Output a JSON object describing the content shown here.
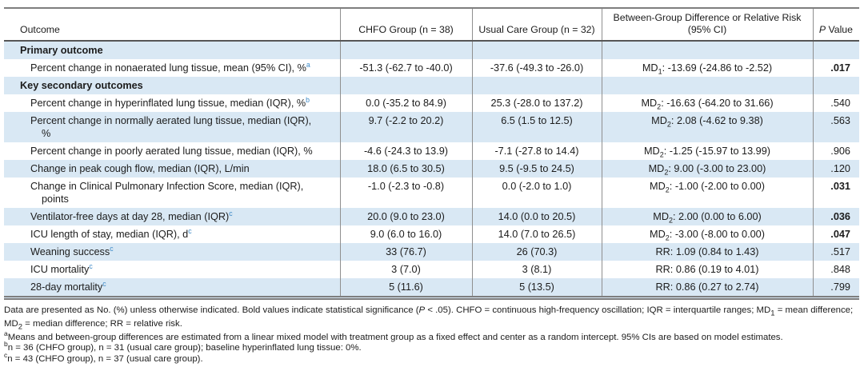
{
  "table": {
    "headers": {
      "outcome": "Outcome",
      "chfo": "CHFO Group (n = 38)",
      "usual": "Usual Care Group (n = 32)",
      "diff_line1": "Between-Group Difference or Relative Risk",
      "diff_line2": "(95% CI)",
      "p_italic": "P",
      "p_rest": " Value"
    },
    "rows": [
      {
        "type": "category",
        "shaded": true,
        "label": "Primary outcome"
      },
      {
        "type": "item",
        "shaded": false,
        "label": "Percent change in nonaerated lung tissue, mean (95% CI), %",
        "sup": "a",
        "chfo": "-51.3 (-62.7 to -40.0)",
        "usual": "-37.6 (-49.3 to -26.0)",
        "diff_pre": "MD",
        "diff_sub": "1",
        "diff_post": ": -13.69 (-24.86 to -2.52)",
        "p": ".017",
        "p_bold": true
      },
      {
        "type": "category",
        "shaded": true,
        "label": "Key secondary outcomes"
      },
      {
        "type": "item",
        "shaded": false,
        "label": "Percent change in hyperinflated lung tissue, median (IQR), %",
        "sup": "b",
        "chfo": "0.0 (-35.2 to 84.9)",
        "usual": "25.3 (-28.0 to 137.2)",
        "diff_pre": "MD",
        "diff_sub": "2",
        "diff_post": ": -16.63 (-64.20 to 31.66)",
        "p": ".540",
        "p_bold": false
      },
      {
        "type": "item",
        "shaded": true,
        "label": "Percent change in normally aerated lung tissue, median (IQR),",
        "label2": "%",
        "chfo": "9.7 (-2.2 to 20.2)",
        "usual": "6.5 (1.5 to 12.5)",
        "diff_pre": "MD",
        "diff_sub": "2",
        "diff_post": ": 2.08 (-4.62 to 9.38)",
        "p": ".563",
        "p_bold": false
      },
      {
        "type": "item",
        "shaded": false,
        "label": "Percent change in poorly aerated lung tissue, median (IQR), %",
        "chfo": "-4.6 (-24.3 to 13.9)",
        "usual": "-7.1 (-27.8 to 14.4)",
        "diff_pre": "MD",
        "diff_sub": "2",
        "diff_post": ": -1.25 (-15.97 to 13.99)",
        "p": ".906",
        "p_bold": false
      },
      {
        "type": "item",
        "shaded": true,
        "label": "Change in peak cough flow, median (IQR), L/min",
        "chfo": "18.0 (6.5 to 30.5)",
        "usual": "9.5 (-9.5 to 24.5)",
        "diff_pre": "MD",
        "diff_sub": "2",
        "diff_post": ": 9.00 (-3.00 to 23.00)",
        "p": ".120",
        "p_bold": false
      },
      {
        "type": "item",
        "shaded": false,
        "label": "Change in Clinical Pulmonary Infection Score, median (IQR),",
        "label2": "points",
        "chfo": "-1.0 (-2.3 to -0.8)",
        "usual": "0.0 (-2.0 to 1.0)",
        "diff_pre": "MD",
        "diff_sub": "2",
        "diff_post": ": -1.00 (-2.00 to 0.00)",
        "p": ".031",
        "p_bold": true
      },
      {
        "type": "item",
        "shaded": true,
        "label": "Ventilator-free days at day 28, median (IQR)",
        "sup": "c",
        "chfo": "20.0 (9.0 to 23.0)",
        "usual": "14.0 (0.0 to 20.5)",
        "diff_pre": "MD",
        "diff_sub": "2",
        "diff_post": ": 2.00 (0.00 to 6.00)",
        "p": ".036",
        "p_bold": true
      },
      {
        "type": "item",
        "shaded": false,
        "label": "ICU length of stay, median (IQR), d",
        "sup": "c",
        "chfo": "9.0 (6.0 to 16.0)",
        "usual": "14.0 (7.0 to 26.5)",
        "diff_pre": "MD",
        "diff_sub": "2",
        "diff_post": ": -3.00 (-8.00 to 0.00)",
        "p": ".047",
        "p_bold": true
      },
      {
        "type": "item",
        "shaded": true,
        "label": "Weaning success",
        "sup": "c",
        "chfo": "33 (76.7)",
        "usual": "26 (70.3)",
        "diff_pre": "RR",
        "diff_sub": "",
        "diff_post": ": 1.09 (0.84 to 1.43)",
        "p": ".517",
        "p_bold": false
      },
      {
        "type": "item",
        "shaded": false,
        "label": "ICU mortality",
        "sup": "c",
        "chfo": "3 (7.0)",
        "usual": "3 (8.1)",
        "diff_pre": "RR",
        "diff_sub": "",
        "diff_post": ": 0.86 (0.19 to 4.01)",
        "p": ".848",
        "p_bold": false
      },
      {
        "type": "item",
        "shaded": true,
        "label": "28-day mortality",
        "sup": "c",
        "chfo": "5 (11.6)",
        "usual": "5 (13.5)",
        "diff_pre": "RR",
        "diff_sub": "",
        "diff_post": ": 0.86 (0.27 to 2.74)",
        "p": ".799",
        "p_bold": false
      }
    ]
  },
  "footnotes": [
    {
      "marker": "",
      "parts": [
        {
          "t": "Data are presented as No. (%) unless otherwise indicated. Bold values indicate statistical significance ("
        },
        {
          "t": "P",
          "i": true
        },
        {
          "t": " < .05). CHFO = continuous high-frequency oscillation; IQR = interquartile ranges; MD"
        },
        {
          "t": "1",
          "sub": true
        },
        {
          "t": " = mean difference; MD"
        },
        {
          "t": "2",
          "sub": true
        },
        {
          "t": " = median difference; RR = relative risk."
        }
      ]
    },
    {
      "marker": "a",
      "parts": [
        {
          "t": "Means and between-group differences are estimated from a linear mixed model with treatment group as a fixed effect and center as a random intercept. 95% CIs are based on model estimates."
        }
      ]
    },
    {
      "marker": "b",
      "parts": [
        {
          "t": "n = 36 (CHFO group), n = 31 (usual care group); baseline hyperinflated lung tissue: 0%."
        }
      ]
    },
    {
      "marker": "c",
      "parts": [
        {
          "t": "n = 43 (CHFO group), n = 37 (usual care group)."
        }
      ]
    }
  ],
  "colors": {
    "row_shade": "#d9e8f4",
    "footnote_marker_blue": "#3f8bc8",
    "rule_gray": "#7e7e7e",
    "header_rule_dark": "#565656",
    "text": "#1c1c1c"
  }
}
